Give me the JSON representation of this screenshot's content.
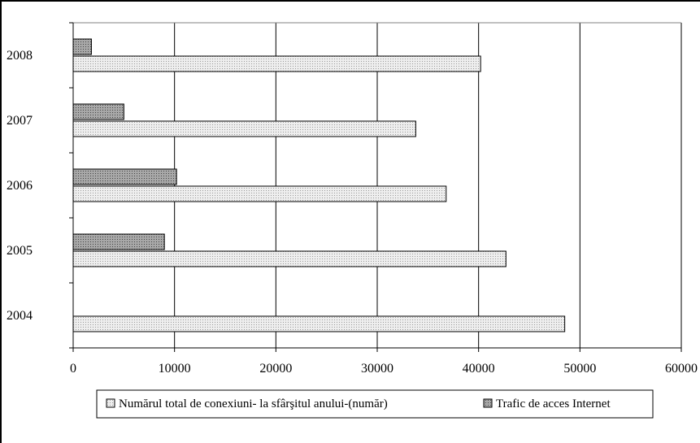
{
  "chart_data": {
    "type": "bar",
    "orientation": "horizontal",
    "categories": [
      "2004",
      "2005",
      "2006",
      "2007",
      "2008"
    ],
    "series": [
      {
        "name": "Numărul total de conexiuni- la sfârşitul anului-(număr)",
        "values": [
          48500,
          42700,
          36800,
          33800,
          40200
        ],
        "color": "#e2e2e2",
        "pattern": "light-dotted"
      },
      {
        "name": "Trafic de acces Internet",
        "values": [
          null,
          9000,
          10200,
          5000,
          1800
        ],
        "color": "#9a9a9a",
        "pattern": "dark-dotted"
      }
    ],
    "xlim": [
      0,
      60000
    ],
    "x_ticks": [
      "0",
      "10000",
      "20000",
      "30000",
      "40000",
      "50000",
      "60000"
    ],
    "grid": "vertical",
    "legend_position": "bottom",
    "title": "",
    "xlabel": "",
    "ylabel": ""
  }
}
